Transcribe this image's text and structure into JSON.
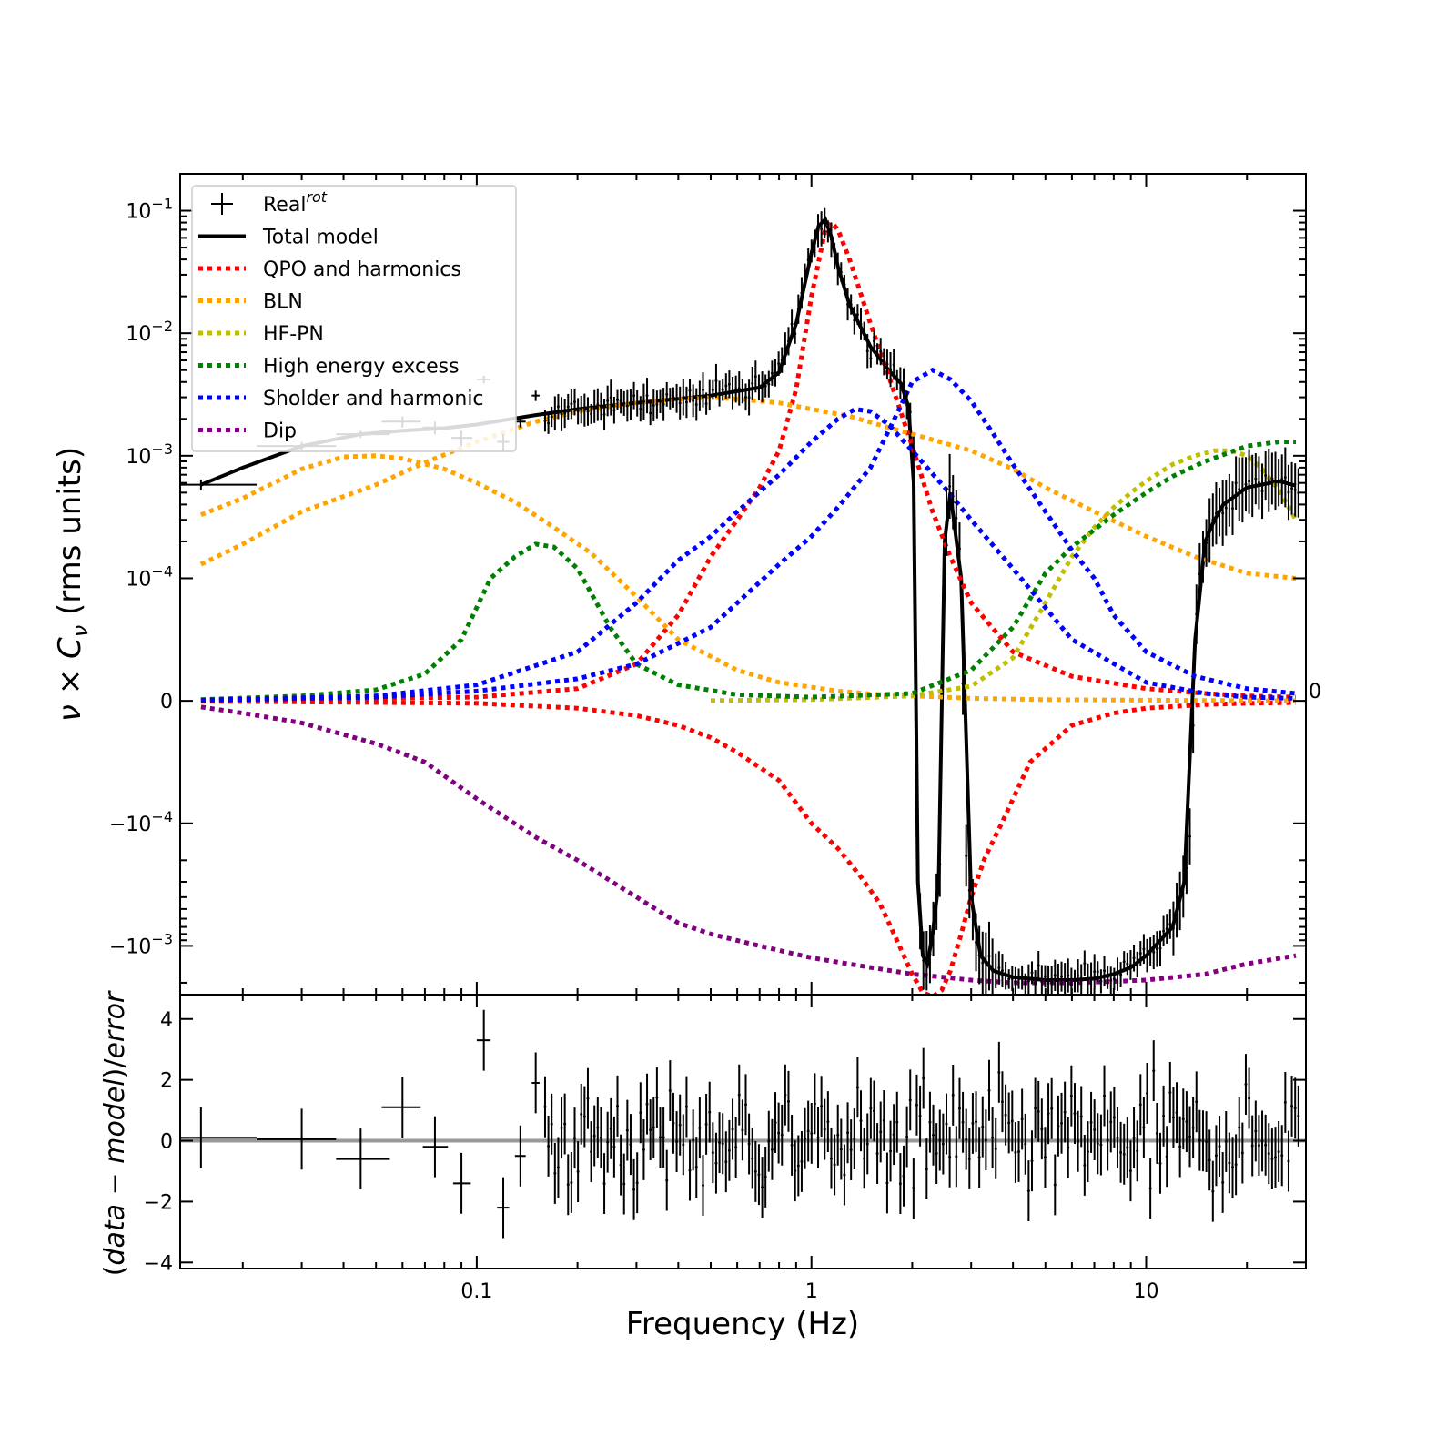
{
  "chart_data": [
    {
      "type": "line",
      "panel": "main",
      "xlabel": "",
      "xscale": "log",
      "xlim": [
        0.013,
        30
      ],
      "yscale": "symlog",
      "symlog_linthresh": 0.0001,
      "ylabel": "ν × Cν (rms units)",
      "ylabel_main": "ν × C",
      "ylabel_sub": "ν",
      "ylabel_units": " (rms units)",
      "ylim": [
        -0.0025,
        0.2
      ],
      "y_ticks": [
        {
          "value": 0.1,
          "base": "10",
          "exp": "−1"
        },
        {
          "value": 0.01,
          "base": "10",
          "exp": "−2"
        },
        {
          "value": 0.001,
          "base": "10",
          "exp": "−3"
        },
        {
          "value": 0.0001,
          "base": "10",
          "exp": "−4"
        },
        {
          "value": 0,
          "base": "0",
          "exp": ""
        },
        {
          "value": -0.0001,
          "base": "−10",
          "exp": "−4"
        },
        {
          "value": -0.001,
          "base": "−10",
          "exp": "−3"
        }
      ],
      "right_tick_label": "0",
      "legend_position": "upper-left",
      "legend": [
        {
          "label": "Real",
          "sup": "rot",
          "style": "errorbar",
          "color": "#000000"
        },
        {
          "label": "Total model",
          "sup": "",
          "style": "solid",
          "color": "#000000"
        },
        {
          "label": "QPO and harmonics",
          "sup": "",
          "style": "dotted",
          "color": "#ff0000"
        },
        {
          "label": "BLN",
          "sup": "",
          "style": "dotted",
          "color": "#ffa500"
        },
        {
          "label": "HF-PN",
          "sup": "",
          "style": "dotted",
          "color": "#bfbf00"
        },
        {
          "label": "High energy excess",
          "sup": "",
          "style": "dotted",
          "color": "#008000"
        },
        {
          "label": "Sholder and harmonic",
          "sup": "",
          "style": "dotted",
          "color": "#0000ff"
        },
        {
          "label": "Dip",
          "sup": "",
          "style": "dotted",
          "color": "#800080"
        }
      ],
      "data_points_low_freq": [
        {
          "x": 0.015,
          "y": 0.00058,
          "xerr": [
            0.011,
            0.022
          ],
          "yerr": 6e-05
        },
        {
          "x": 0.03,
          "y": 0.0012,
          "xerr": [
            0.022,
            0.038
          ],
          "yerr": 0.0001
        },
        {
          "x": 0.045,
          "y": 0.0015,
          "xerr": [
            0.038,
            0.055
          ],
          "yerr": 0.0001
        },
        {
          "x": 0.06,
          "y": 0.0019,
          "xerr": [
            0.052,
            0.068
          ],
          "yerr": 0.0002
        },
        {
          "x": 0.075,
          "y": 0.0017,
          "xerr": [
            0.069,
            0.082
          ],
          "yerr": 0.0002
        },
        {
          "x": 0.09,
          "y": 0.0014,
          "xerr": [
            0.084,
            0.097
          ],
          "yerr": 0.0002
        },
        {
          "x": 0.105,
          "y": 0.0042,
          "xerr": [
            0.1,
            0.11
          ],
          "yerr": 0.0003
        },
        {
          "x": 0.12,
          "y": 0.0013,
          "xerr": [
            0.115,
            0.125
          ],
          "yerr": 0.0002
        },
        {
          "x": 0.135,
          "y": 0.0019,
          "xerr": [
            0.13,
            0.14
          ],
          "yerr": 0.0002
        },
        {
          "x": 0.15,
          "y": 0.0031,
          "xerr": [
            0.146,
            0.154
          ],
          "yerr": 0.0003
        }
      ],
      "series": [
        {
          "name": "Total model",
          "color": "#000000",
          "style": "solid",
          "x": [
            0.015,
            0.02,
            0.03,
            0.045,
            0.06,
            0.08,
            0.1,
            0.15,
            0.2,
            0.3,
            0.5,
            0.7,
            0.8,
            0.9,
            1.0,
            1.05,
            1.1,
            1.15,
            1.2,
            1.3,
            1.5,
            1.7,
            1.85,
            1.95,
            2.02,
            2.08,
            2.15,
            2.22,
            2.3,
            2.4,
            2.5,
            2.6,
            2.8,
            3.0,
            3.2,
            3.5,
            4.0,
            5.0,
            6.0,
            7.0,
            8.0,
            9.0,
            10.0,
            12.0,
            13.0,
            14.0,
            15.0,
            16.0,
            17.0,
            20.0,
            25.0,
            28.0
          ],
          "y": [
            0.00058,
            0.0008,
            0.0012,
            0.0015,
            0.0016,
            0.00168,
            0.0018,
            0.00215,
            0.0024,
            0.0027,
            0.0031,
            0.0036,
            0.0048,
            0.012,
            0.045,
            0.075,
            0.085,
            0.06,
            0.035,
            0.017,
            0.0078,
            0.005,
            0.0039,
            0.0025,
            0.0006,
            -0.0003,
            -0.0012,
            -0.0014,
            -0.0008,
            -0.0003,
            0.0002,
            0.0005,
            0.0001,
            -0.0004,
            -0.0012,
            -0.0016,
            -0.0018,
            -0.0019,
            -0.0019,
            -0.00185,
            -0.0017,
            -0.0015,
            -0.0012,
            -0.0007,
            -0.0003,
            5e-05,
            0.0002,
            0.0003,
            0.0004,
            0.00055,
            0.00062,
            0.00057
          ]
        },
        {
          "name": "QPO and harmonics",
          "color": "#ff0000",
          "style": "dotted",
          "x": [
            0.015,
            0.1,
            0.2,
            0.3,
            0.4,
            0.5,
            0.6,
            0.7,
            0.8,
            0.9,
            1.0,
            1.1,
            1.15,
            1.2,
            1.3,
            1.5,
            1.7,
            2.0,
            2.3,
            2.6,
            3.0,
            4.0,
            6.0,
            10.0,
            15.0,
            20.0,
            28.0
          ],
          "y": [
            5e-07,
            3e-06,
            1e-05,
            3e-05,
            7e-05,
            0.00015,
            0.0003,
            0.00055,
            0.0011,
            0.0035,
            0.02,
            0.07,
            0.08,
            0.07,
            0.04,
            0.012,
            0.0045,
            0.0012,
            0.00035,
            0.00015,
            8e-05,
            4e-05,
            2e-05,
            1e-05,
            6e-06,
            4e-06,
            3e-06
          ]
        },
        {
          "name": "QPO and harmonics",
          "color": "#ff0000",
          "style": "dotted",
          "x": [
            0.015,
            0.1,
            0.2,
            0.3,
            0.4,
            0.5,
            0.6,
            0.8,
            1.0,
            1.2,
            1.4,
            1.6,
            1.8,
            2.0,
            2.15,
            2.3,
            2.45,
            2.6,
            2.8,
            3.0,
            3.3,
            3.7,
            4.5,
            6.0,
            8.0,
            10.0,
            15.0,
            20.0,
            28.0
          ],
          "y": [
            -3e-07,
            -2e-06,
            -6e-06,
            -1.2e-05,
            -2e-05,
            -3e-05,
            -4.2e-05,
            -6.5e-05,
            -0.0001,
            -0.00016,
            -0.00027,
            -0.00045,
            -0.0009,
            -0.0017,
            -0.0024,
            -0.0026,
            -0.0023,
            -0.0016,
            -0.0008,
            -0.0004,
            -0.00019,
            -0.0001,
            -5e-05,
            -2e-05,
            -1e-05,
            -6e-06,
            -3e-06,
            -2e-06,
            -1.5e-06
          ]
        },
        {
          "name": "BLN",
          "color": "#ffa500",
          "style": "dotted",
          "x": [
            0.015,
            0.02,
            0.03,
            0.04,
            0.05,
            0.06,
            0.08,
            0.1,
            0.13,
            0.17,
            0.22,
            0.3,
            0.4,
            0.6,
            0.8,
            1.2,
            1.6,
            2.0,
            3.0,
            5.0,
            10.0,
            20.0,
            28.0
          ],
          "y": [
            0.00033,
            0.00045,
            0.00078,
            0.00098,
            0.001,
            0.00095,
            0.00078,
            0.0006,
            0.00042,
            0.00026,
            0.00016,
            8.5e-05,
            5e-05,
            2.5e-05,
            1.5e-05,
            8e-06,
            5e-06,
            4e-06,
            2e-06,
            1e-06,
            5e-07,
            2e-07,
            1e-07
          ]
        },
        {
          "name": "BLN",
          "color": "#ffa500",
          "style": "dotted",
          "x": [
            0.015,
            0.02,
            0.03,
            0.05,
            0.07,
            0.1,
            0.15,
            0.2,
            0.3,
            0.4,
            0.5,
            0.6,
            0.8,
            1.0,
            1.3,
            1.7,
            2.2,
            3.0,
            4.0,
            5.0,
            7.0,
            10.0,
            14.0,
            20.0,
            28.0
          ],
          "y": [
            0.00013,
            0.00019,
            0.00035,
            0.00058,
            0.00088,
            0.0013,
            0.0019,
            0.0023,
            0.0027,
            0.0029,
            0.003,
            0.0029,
            0.0027,
            0.0024,
            0.0021,
            0.0017,
            0.0014,
            0.0011,
            0.00078,
            0.00055,
            0.00035,
            0.00022,
            0.00015,
            0.00011,
            0.0001
          ]
        },
        {
          "name": "HF-PN",
          "color": "#bfbf00",
          "style": "dotted",
          "x": [
            0.5,
            1.0,
            2.0,
            3.0,
            4.0,
            5.0,
            6.0,
            7.0,
            8.0,
            9.0,
            10.0,
            12.0,
            14.0,
            16.0,
            18.0,
            20.0,
            22.0,
            25.0,
            28.0
          ],
          "y": [
            2e-07,
            1e-06,
            4e-06,
            1.2e-05,
            3.5e-05,
            8e-05,
            0.00015,
            0.00026,
            0.00038,
            0.0005,
            0.00062,
            0.00085,
            0.001,
            0.0011,
            0.0011,
            0.001,
            0.0008,
            0.00052,
            0.0003
          ]
        },
        {
          "name": "High energy excess",
          "color": "#008000",
          "style": "dotted",
          "x": [
            0.015,
            0.03,
            0.05,
            0.07,
            0.09,
            0.11,
            0.13,
            0.15,
            0.17,
            0.2,
            0.25,
            0.3,
            0.4,
            0.6,
            1.0,
            2.0,
            3.0,
            4.0,
            5.0,
            6.0,
            8.0,
            10.0,
            12.0,
            15.0,
            20.0,
            25.0,
            28.0
          ],
          "y": [
            1e-06,
            4e-06,
            9e-06,
            2.2e-05,
            5e-05,
            0.0001,
            0.00015,
            0.00019,
            0.00018,
            0.00012,
            6e-05,
            3e-05,
            1.3e-05,
            5e-06,
            3e-06,
            6e-06,
            2.5e-05,
            6e-05,
            0.00011,
            0.00018,
            0.00033,
            0.0005,
            0.00068,
            0.0009,
            0.0012,
            0.0013,
            0.0013
          ]
        },
        {
          "name": "Sholder and harmonic",
          "color": "#0000ff",
          "style": "dotted",
          "x": [
            0.015,
            0.05,
            0.1,
            0.2,
            0.3,
            0.4,
            0.5,
            0.6,
            0.8,
            1.0,
            1.2,
            1.35,
            1.5,
            1.7,
            2.0,
            2.5,
            3.0,
            4.0,
            6.0,
            10.0,
            15.0,
            20.0,
            28.0
          ],
          "y": [
            5e-07,
            4e-06,
            1.3e-05,
            4e-05,
            8e-05,
            0.00014,
            0.00022,
            0.00035,
            0.0007,
            0.0013,
            0.002,
            0.0024,
            0.0023,
            0.0018,
            0.0011,
            0.00055,
            0.0003,
            0.00012,
            5e-05,
            1.5e-05,
            6e-06,
            3e-06,
            2e-06
          ]
        },
        {
          "name": "Sholder and harmonic",
          "color": "#0000ff",
          "style": "dotted",
          "x": [
            0.015,
            0.05,
            0.1,
            0.2,
            0.3,
            0.5,
            0.8,
            1.0,
            1.2,
            1.5,
            1.8,
            2.0,
            2.3,
            2.6,
            3.0,
            3.5,
            4.0,
            5.0,
            6.0,
            7.0,
            8.0,
            10.0,
            14.0,
            20.0,
            28.0
          ],
          "y": [
            5e-07,
            3e-06,
            8e-06,
            1.8e-05,
            3e-05,
            6e-05,
            0.00013,
            0.00022,
            0.00038,
            0.0008,
            0.0022,
            0.004,
            0.005,
            0.0042,
            0.0028,
            0.0015,
            0.00085,
            0.00035,
            0.00017,
            0.0001,
            7e-05,
            4e-05,
            2e-05,
            1e-05,
            6e-06
          ]
        },
        {
          "name": "Dip",
          "color": "#800080",
          "style": "dotted",
          "x": [
            0.015,
            0.02,
            0.03,
            0.05,
            0.07,
            0.1,
            0.15,
            0.2,
            0.3,
            0.4,
            0.5,
            0.7,
            1.0,
            1.5,
            2.0,
            3.0,
            4.0,
            5.0,
            6.0,
            8.0,
            10.0,
            15.0,
            20.0,
            28.0
          ],
          "y": [
            -5e-06,
            -1e-05,
            -1.8e-05,
            -3.5e-05,
            -5e-05,
            -8e-05,
            -0.00013,
            -0.0002,
            -0.0004,
            -0.00065,
            -0.0008,
            -0.001,
            -0.00125,
            -0.0015,
            -0.0017,
            -0.0019,
            -0.002,
            -0.002,
            -0.002,
            -0.00195,
            -0.0019,
            -0.0017,
            -0.0014,
            -0.0012
          ]
        }
      ]
    },
    {
      "type": "scatter",
      "panel": "residuals",
      "xlabel": "Frequency (Hz)",
      "ylabel": "(data − model)/error",
      "ylabel_parts": [
        "(",
        "data",
        " − ",
        "model",
        ")/",
        "error"
      ],
      "xscale": "log",
      "xlim": [
        0.013,
        30
      ],
      "ylim": [
        -4.2,
        4.8
      ],
      "y_ticks": [
        4,
        2,
        0,
        -2,
        -4
      ],
      "y_tick_labels": [
        "4",
        "2",
        "0",
        "−2",
        "−4"
      ],
      "x_ticks": [
        0.1,
        1,
        10
      ],
      "x_tick_labels": [
        "0.1",
        "1",
        "10"
      ],
      "zero_line": true,
      "points_low_freq": [
        {
          "x": 0.015,
          "y": 0.1,
          "xerr": [
            0.011,
            0.022
          ]
        },
        {
          "x": 0.03,
          "y": 0.05,
          "xerr": [
            0.022,
            0.038
          ]
        },
        {
          "x": 0.045,
          "y": -0.6,
          "xerr": [
            0.038,
            0.055
          ]
        },
        {
          "x": 0.06,
          "y": 1.1,
          "xerr": [
            0.052,
            0.068
          ]
        },
        {
          "x": 0.075,
          "y": -0.2,
          "xerr": [
            0.069,
            0.082
          ]
        },
        {
          "x": 0.09,
          "y": -1.4,
          "xerr": [
            0.085,
            0.096
          ]
        },
        {
          "x": 0.105,
          "y": 3.3,
          "xerr": [
            0.1,
            0.11
          ]
        },
        {
          "x": 0.12,
          "y": -2.2,
          "xerr": [
            0.115,
            0.125
          ]
        },
        {
          "x": 0.135,
          "y": -0.5,
          "xerr": [
            0.13,
            0.14
          ]
        },
        {
          "x": 0.15,
          "y": 1.9,
          "xerr": [
            0.146,
            0.154
          ]
        }
      ]
    }
  ]
}
